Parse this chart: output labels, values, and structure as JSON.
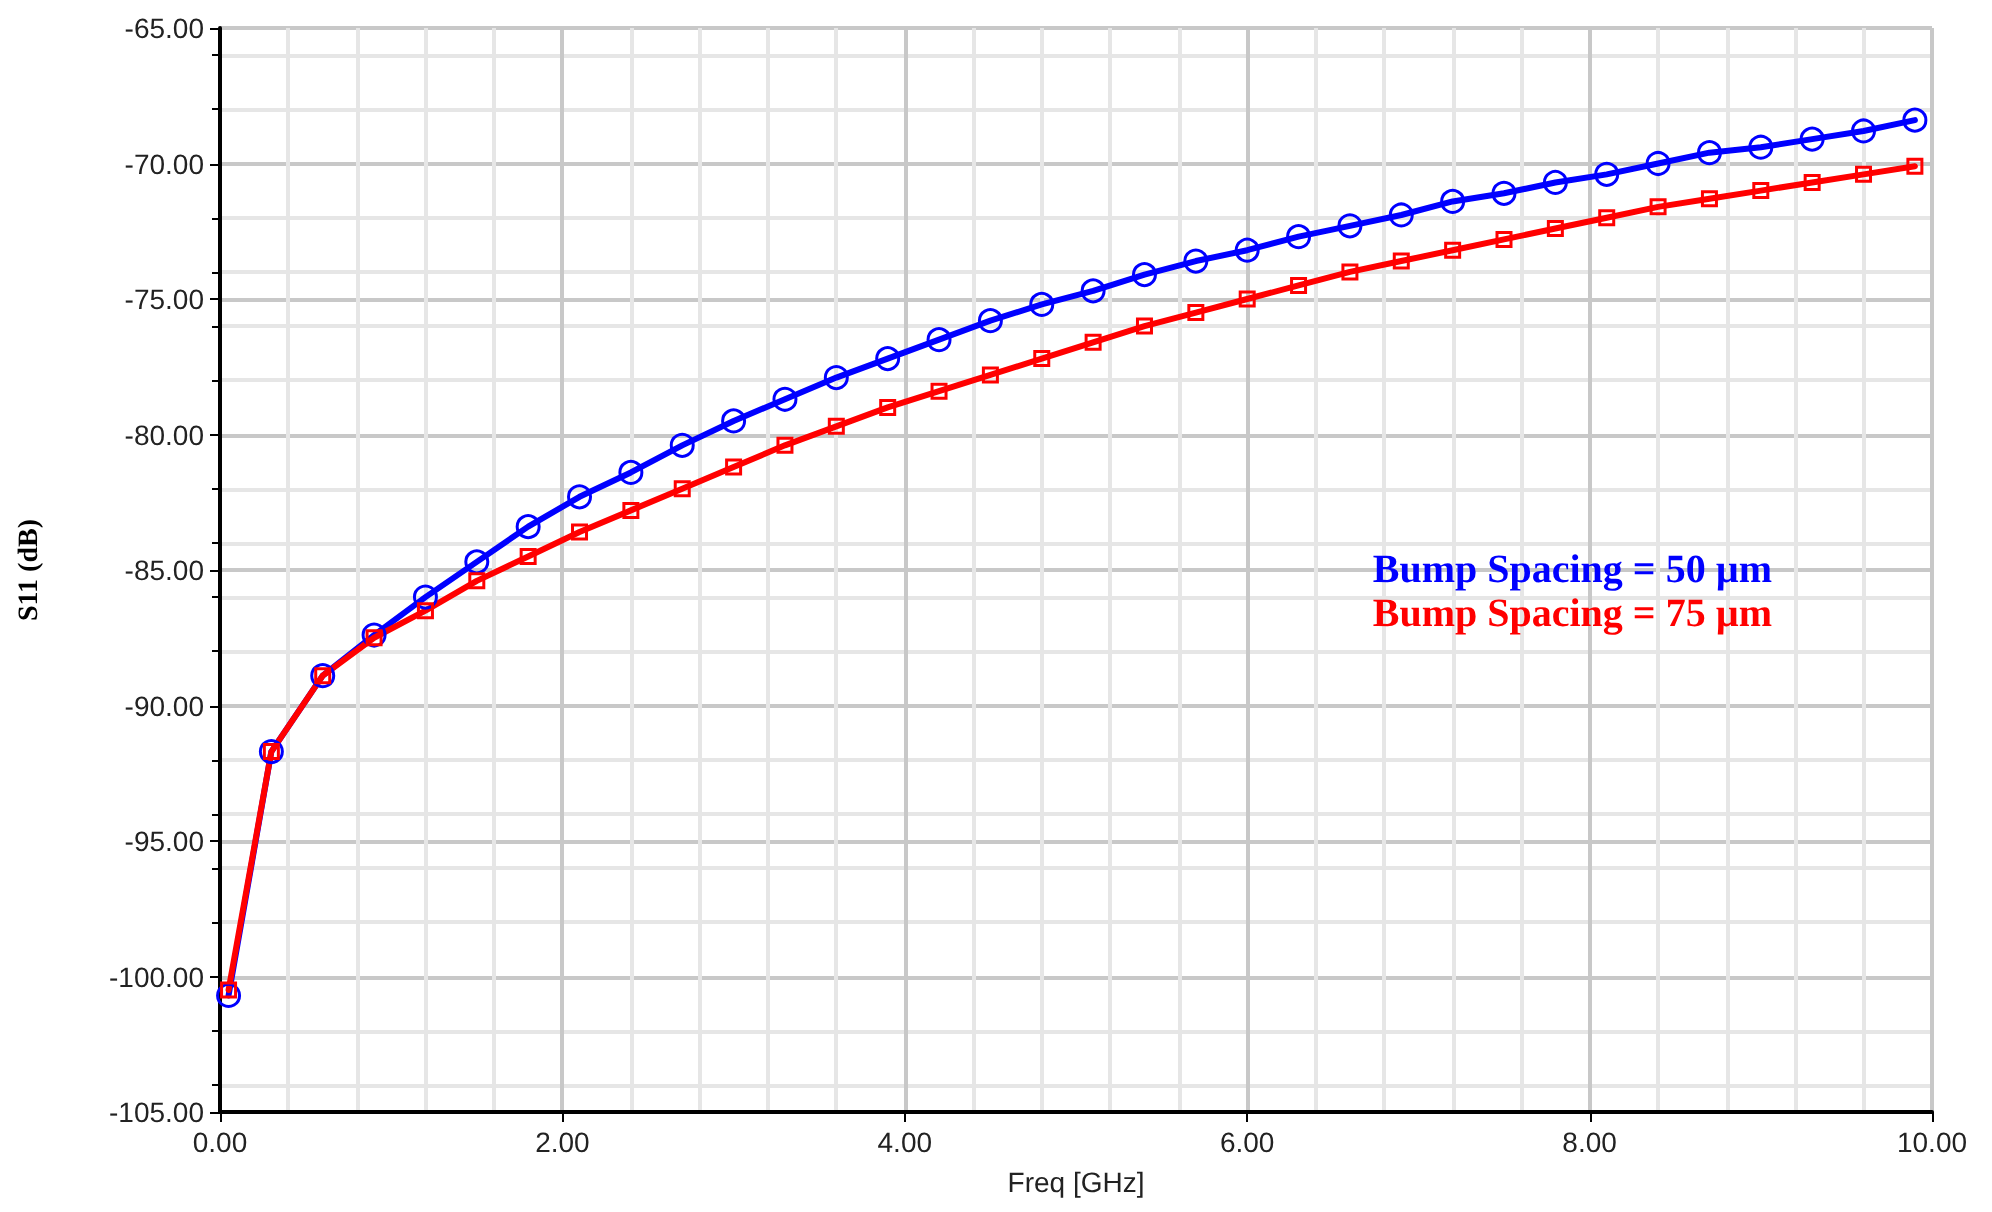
{
  "chart_data": {
    "type": "line",
    "xlabel": "Freq [GHz]",
    "ylabel": "S11 (dB)",
    "x": [
      0.05,
      0.3,
      0.6,
      0.9,
      1.2,
      1.5,
      1.8,
      2.1,
      2.4,
      2.7,
      3.0,
      3.3,
      3.6,
      3.9,
      4.2,
      4.5,
      4.8,
      5.1,
      5.4,
      5.7,
      6.0,
      6.3,
      6.6,
      6.9,
      7.2,
      7.5,
      7.8,
      8.1,
      8.4,
      8.7,
      9.0,
      9.3,
      9.6,
      9.9
    ],
    "series": [
      {
        "name": "Bump Spacing = 50 µm",
        "color": "#0000ff",
        "marker": "circle",
        "values": [
          -100.7,
          -91.7,
          -88.9,
          -87.4,
          -86.0,
          -84.7,
          -83.4,
          -82.3,
          -81.4,
          -80.4,
          -79.5,
          -78.7,
          -77.9,
          -77.2,
          -76.5,
          -75.8,
          -75.2,
          -74.7,
          -74.1,
          -73.6,
          -73.2,
          -72.7,
          -72.3,
          -71.9,
          -71.4,
          -71.1,
          -70.7,
          -70.4,
          -70.0,
          -69.6,
          -69.4,
          -69.1,
          -68.8,
          -68.4
        ]
      },
      {
        "name": "Bump Spacing = 75 µm",
        "color": "#ff0000",
        "marker": "square",
        "values": [
          -100.5,
          -91.7,
          -88.9,
          -87.5,
          -86.5,
          -85.4,
          -84.5,
          -83.6,
          -82.8,
          -82.0,
          -81.2,
          -80.4,
          -79.7,
          -79.0,
          -78.4,
          -77.8,
          -77.2,
          -76.6,
          -76.0,
          -75.5,
          -75.0,
          -74.5,
          -74.0,
          -73.6,
          -73.2,
          -72.8,
          -72.4,
          -72.0,
          -71.6,
          -71.3,
          -71.0,
          -70.7,
          -70.4,
          -70.1
        ]
      }
    ],
    "xlim": [
      0,
      10
    ],
    "ylim": [
      -105,
      -65
    ],
    "xticks": [
      {
        "value": 0,
        "label": "0.00"
      },
      {
        "value": 2,
        "label": "2.00"
      },
      {
        "value": 4,
        "label": "4.00"
      },
      {
        "value": 6,
        "label": "6.00"
      },
      {
        "value": 8,
        "label": "8.00"
      },
      {
        "value": 10,
        "label": "10.00"
      }
    ],
    "yticks": [
      {
        "value": -105,
        "label": "-105.00"
      },
      {
        "value": -100,
        "label": "-100.00"
      },
      {
        "value": -95,
        "label": "-95.00"
      },
      {
        "value": -90,
        "label": "-90.00"
      },
      {
        "value": -85,
        "label": "-85.00"
      },
      {
        "value": -80,
        "label": "-80.00"
      },
      {
        "value": -75,
        "label": "-75.00"
      },
      {
        "value": -70,
        "label": "-70.00"
      },
      {
        "value": -65,
        "label": "-65.00"
      }
    ],
    "grid": true,
    "legend": "right",
    "line_style": "solid"
  }
}
